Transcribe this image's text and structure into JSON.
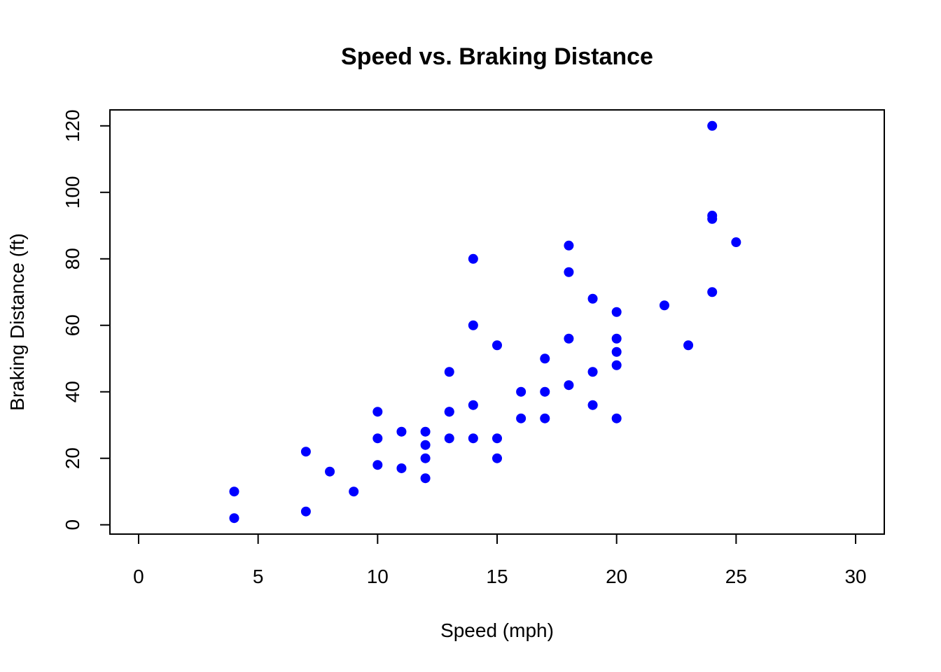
{
  "chart_data": {
    "type": "scatter",
    "title": "Speed vs. Braking Distance",
    "xlabel": "Speed (mph)",
    "ylabel": "Braking Distance (ft)",
    "xlim": [
      -1.2,
      31.2
    ],
    "ylim": [
      -2.8,
      124.8
    ],
    "xticks": [
      0,
      5,
      10,
      15,
      20,
      25,
      30
    ],
    "yticks": [
      0,
      20,
      40,
      60,
      80,
      100,
      120
    ],
    "grid": false,
    "point_color": "#0000ff",
    "x": [
      4,
      4,
      7,
      7,
      8,
      9,
      10,
      10,
      10,
      11,
      11,
      12,
      12,
      12,
      12,
      13,
      13,
      13,
      13,
      14,
      14,
      14,
      14,
      15,
      15,
      15,
      16,
      16,
      17,
      17,
      17,
      18,
      18,
      18,
      18,
      19,
      19,
      19,
      20,
      20,
      20,
      20,
      20,
      22,
      23,
      24,
      24,
      24,
      24,
      25
    ],
    "y": [
      2,
      10,
      4,
      22,
      16,
      10,
      18,
      26,
      34,
      17,
      28,
      14,
      20,
      24,
      28,
      26,
      34,
      34,
      46,
      26,
      36,
      60,
      80,
      20,
      26,
      54,
      32,
      40,
      32,
      40,
      50,
      42,
      56,
      76,
      84,
      36,
      46,
      68,
      32,
      48,
      52,
      56,
      64,
      66,
      54,
      70,
      92,
      93,
      120,
      85
    ]
  }
}
